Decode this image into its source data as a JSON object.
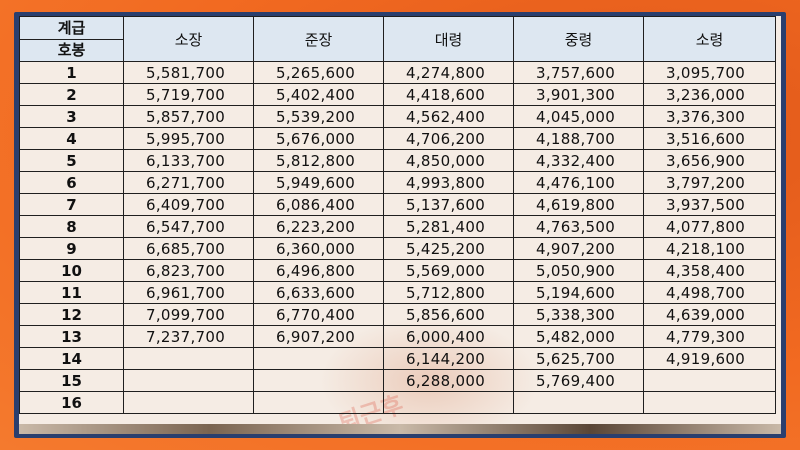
{
  "header": {
    "grade_label": "계급",
    "step_label": "호봉",
    "ranks": [
      "소장",
      "준장",
      "대령",
      "중령",
      "소령"
    ]
  },
  "rows": [
    {
      "step": "1",
      "values": [
        "5,581,700",
        "5,265,600",
        "4,274,800",
        "3,757,600",
        "3,095,700"
      ]
    },
    {
      "step": "2",
      "values": [
        "5,719,700",
        "5,402,400",
        "4,418,600",
        "3,901,300",
        "3,236,000"
      ]
    },
    {
      "step": "3",
      "values": [
        "5,857,700",
        "5,539,200",
        "4,562,400",
        "4,045,000",
        "3,376,300"
      ]
    },
    {
      "step": "4",
      "values": [
        "5,995,700",
        "5,676,000",
        "4,706,200",
        "4,188,700",
        "3,516,600"
      ]
    },
    {
      "step": "5",
      "values": [
        "6,133,700",
        "5,812,800",
        "4,850,000",
        "4,332,400",
        "3,656,900"
      ]
    },
    {
      "step": "6",
      "values": [
        "6,271,700",
        "5,949,600",
        "4,993,800",
        "4,476,100",
        "3,797,200"
      ]
    },
    {
      "step": "7",
      "values": [
        "6,409,700",
        "6,086,400",
        "5,137,600",
        "4,619,800",
        "3,937,500"
      ]
    },
    {
      "step": "8",
      "values": [
        "6,547,700",
        "6,223,200",
        "5,281,400",
        "4,763,500",
        "4,077,800"
      ]
    },
    {
      "step": "9",
      "values": [
        "6,685,700",
        "6,360,000",
        "5,425,200",
        "4,907,200",
        "4,218,100"
      ]
    },
    {
      "step": "10",
      "values": [
        "6,823,700",
        "6,496,800",
        "5,569,000",
        "5,050,900",
        "4,358,400"
      ]
    },
    {
      "step": "11",
      "values": [
        "6,961,700",
        "6,633,600",
        "5,712,800",
        "5,194,600",
        "4,498,700"
      ]
    },
    {
      "step": "12",
      "values": [
        "7,099,700",
        "6,770,400",
        "5,856,600",
        "5,338,300",
        "4,639,000"
      ]
    },
    {
      "step": "13",
      "values": [
        "7,237,700",
        "6,907,200",
        "6,000,400",
        "5,482,000",
        "4,779,300"
      ]
    },
    {
      "step": "14",
      "values": [
        "",
        "",
        "6,144,200",
        "5,625,700",
        "4,919,600"
      ]
    },
    {
      "step": "15",
      "values": [
        "",
        "",
        "6,288,000",
        "5,769,400",
        ""
      ]
    },
    {
      "step": "16",
      "values": [
        "",
        "",
        "",
        "",
        ""
      ]
    }
  ],
  "watermark": "퇴근후",
  "colors": {
    "frame": "#f26a21",
    "header_bg": "#dde7f1",
    "sheet_bg": "#f5ece4"
  }
}
